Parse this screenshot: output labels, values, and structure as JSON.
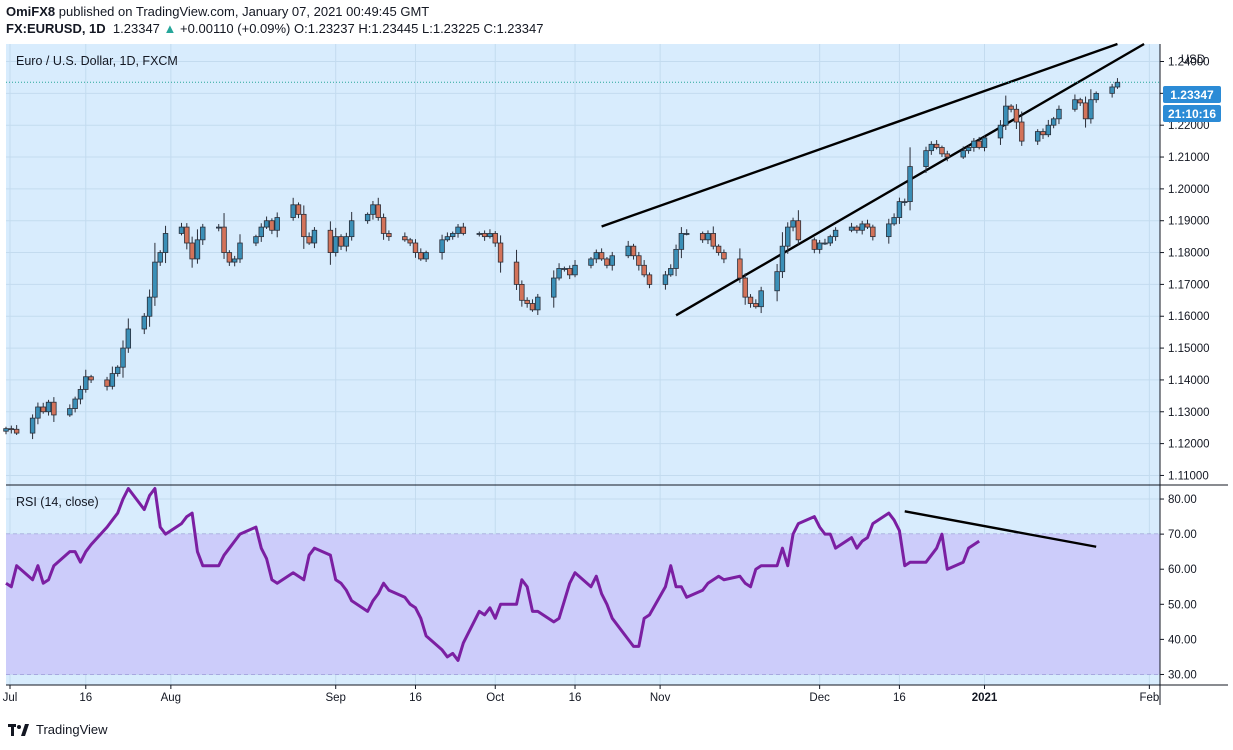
{
  "header": {
    "publisher": "OmiFX8",
    "published_text": "published on TradingView.com, January 07, 2021 00:49:45 GMT",
    "symbol": "FX:EURUSD, 1D",
    "last": "1.23347",
    "change_arrow": "▲",
    "change": "+0.00110 (+0.09%)",
    "o_label": "O:",
    "o": "1.23237",
    "h_label": "H:",
    "h": "1.23445",
    "l_label": "L:",
    "l": "1.23225",
    "c_label": "C:",
    "c": "1.23347"
  },
  "price_pane": {
    "legend": "Euro / U.S. Dollar, 1D, FXCM",
    "currency": "USD",
    "last_price_badge": "1.23347",
    "countdown_badge": "21:10:16"
  },
  "rsi_pane": {
    "legend": "RSI (14, close)"
  },
  "brand": {
    "name": "TradingView"
  },
  "colors": {
    "pane_bg": "#d8ecfd",
    "rsi_band": "#ccccfa",
    "rsi_line": "#7b1fa2",
    "candle_up": "#3a8fb7",
    "candle_down": "#d3735a",
    "last_price": "#2b8bd6",
    "trendline": "#000000"
  },
  "chart_data": [
    {
      "type": "candlestick",
      "title": "Euro / U.S. Dollar, 1D, FXCM",
      "y_axis_ticks": [
        "1.24000",
        "1.23000",
        "1.22000",
        "1.21000",
        "1.20000",
        "1.19000",
        "1.18000",
        "1.17000",
        "1.16000",
        "1.15000",
        "1.14000",
        "1.13000",
        "1.12000",
        "1.11000"
      ],
      "ylim": [
        1.107,
        1.2455
      ],
      "x_axis_labels": [
        "Jul",
        "16",
        "Aug",
        "Sep",
        "16",
        "Oct",
        "16",
        "Nov",
        "Dec",
        "16",
        "2021",
        "Feb"
      ],
      "xlim": [
        "2020-07-01",
        "2021-02-03"
      ],
      "last_close": 1.23347,
      "closes": [
        1.1247,
        1.1245,
        1.1233,
        1.128,
        1.1315,
        1.13,
        1.133,
        1.129,
        1.131,
        1.134,
        1.137,
        1.141,
        1.14,
        1.138,
        1.142,
        1.144,
        1.15,
        1.156,
        1.16,
        1.166,
        1.177,
        1.18,
        1.186,
        1.188,
        1.183,
        1.178,
        1.184,
        1.188,
        1.188,
        1.18,
        1.177,
        1.178,
        1.183,
        1.185,
        1.188,
        1.19,
        1.187,
        1.191,
        1.195,
        1.192,
        1.185,
        1.183,
        1.187,
        1.18,
        1.185,
        1.182,
        1.185,
        1.19,
        1.192,
        1.195,
        1.191,
        1.186,
        1.185,
        1.184,
        1.183,
        1.18,
        1.178,
        1.18,
        1.184,
        1.185,
        1.186,
        1.188,
        1.186,
        1.186,
        1.185,
        1.186,
        1.183,
        1.177,
        1.17,
        1.165,
        1.164,
        1.162,
        1.166,
        1.172,
        1.175,
        1.175,
        1.173,
        1.176,
        1.178,
        1.18,
        1.178,
        1.176,
        1.179,
        1.182,
        1.179,
        1.176,
        1.173,
        1.17,
        1.173,
        1.175,
        1.181,
        1.186,
        1.186,
        1.184,
        1.186,
        1.182,
        1.18,
        1.178,
        1.172,
        1.166,
        1.164,
        1.163,
        1.168,
        1.174,
        1.182,
        1.188,
        1.19,
        1.184,
        1.181,
        1.183,
        1.183,
        1.185,
        1.187,
        1.188,
        1.187,
        1.189,
        1.188,
        1.185,
        1.189,
        1.191,
        1.196,
        1.196,
        1.207,
        1.212,
        1.214,
        1.213,
        1.211,
        1.21,
        1.212,
        1.213,
        1.215,
        1.213,
        1.216,
        1.22,
        1.226,
        1.225,
        1.221,
        1.215,
        1.218,
        1.217,
        1.22,
        1.222,
        1.225,
        1.228,
        1.227,
        1.222,
        1.228,
        1.23,
        1.232,
        1.23347
      ]
    },
    {
      "type": "line",
      "title": "RSI (14, close)",
      "y_axis_ticks": [
        "80.00",
        "70.00",
        "60.00",
        "50.00",
        "40.00",
        "30.00"
      ],
      "ylim": [
        27,
        84
      ],
      "band": [
        30,
        70
      ],
      "values": [
        56,
        55,
        61,
        57,
        61,
        56,
        57,
        61,
        65,
        65,
        62,
        65,
        67,
        72,
        74,
        76,
        80,
        83,
        77,
        81,
        83,
        72,
        70,
        73,
        75,
        76,
        65,
        61,
        61,
        64,
        66,
        68,
        70,
        72,
        66,
        63,
        57,
        56,
        59,
        58,
        57,
        64,
        66,
        64,
        57,
        56,
        54,
        51,
        48,
        51,
        53,
        56,
        54,
        52,
        50,
        49,
        46,
        41,
        37,
        35,
        36,
        34,
        39,
        48,
        47,
        49,
        46,
        50,
        50,
        57,
        55,
        48,
        48,
        45,
        46,
        51,
        56,
        59,
        55,
        58,
        53,
        50,
        46,
        40,
        38,
        38,
        46,
        47,
        55,
        61,
        55,
        55,
        52,
        54,
        56,
        57,
        58,
        57,
        58,
        56,
        55,
        60,
        61,
        61,
        66,
        61,
        70,
        73,
        75,
        72,
        70,
        70,
        66,
        69,
        66,
        68,
        69,
        73,
        76,
        74,
        71,
        61,
        62,
        62,
        64,
        66,
        70,
        60,
        62,
        66,
        67,
        68
      ]
    }
  ]
}
